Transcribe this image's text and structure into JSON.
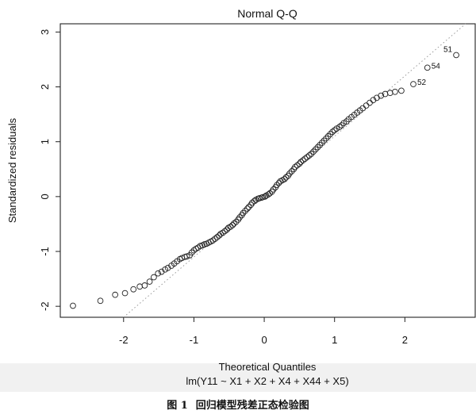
{
  "caption": {
    "label": "图 1",
    "text": "回归模型残差正态检验图"
  },
  "chart_data": {
    "type": "scatter",
    "title": "Normal Q-Q",
    "xlabel": "Theoretical Quantiles",
    "ylabel": "Standardized residuals",
    "sublabel": "lm(Y11 ~ X1 + X2 + X4 + X44 + X5)",
    "xlim": [
      -2.9,
      3.0
    ],
    "ylim": [
      -2.2,
      3.15
    ],
    "xticks": [
      -2,
      -1,
      0,
      1,
      2
    ],
    "xtick_labels": [
      "-2",
      "-1",
      "0",
      "1",
      "2"
    ],
    "yticks": [
      -2,
      -1,
      0,
      1,
      2,
      3
    ],
    "ytick_labels": [
      "-2",
      "-1",
      "0",
      "1",
      "2",
      "3"
    ],
    "grid": false,
    "reference_line": {
      "slope": 1.1,
      "intercept": 0.0,
      "style": "dotted",
      "color": "#999999"
    },
    "point_color": "#222222",
    "labeled_points": [
      {
        "label": "51",
        "x": 2.73,
        "y": 2.58
      },
      {
        "label": "54",
        "x": 2.32,
        "y": 2.35
      },
      {
        "label": "52",
        "x": 2.12,
        "y": 2.05
      }
    ],
    "x": [
      -2.72,
      -2.33,
      -2.12,
      -1.98,
      -1.86,
      -1.77,
      -1.7,
      -1.63,
      -1.57,
      -1.51,
      -1.46,
      -1.41,
      -1.37,
      -1.32,
      -1.28,
      -1.24,
      -1.2,
      -1.17,
      -1.13,
      -1.1,
      -1.06,
      -1.03,
      -1.0,
      -0.97,
      -0.94,
      -0.91,
      -0.88,
      -0.85,
      -0.82,
      -0.79,
      -0.76,
      -0.73,
      -0.7,
      -0.67,
      -0.64,
      -0.62,
      -0.59,
      -0.56,
      -0.53,
      -0.51,
      -0.48,
      -0.45,
      -0.43,
      -0.4,
      -0.37,
      -0.35,
      -0.32,
      -0.3,
      -0.27,
      -0.24,
      -0.22,
      -0.19,
      -0.17,
      -0.14,
      -0.12,
      -0.09,
      -0.07,
      -0.04,
      -0.02,
      0.01,
      0.03,
      0.06,
      0.08,
      0.11,
      0.13,
      0.16,
      0.18,
      0.21,
      0.23,
      0.26,
      0.29,
      0.31,
      0.34,
      0.36,
      0.39,
      0.42,
      0.44,
      0.47,
      0.5,
      0.52,
      0.55,
      0.58,
      0.61,
      0.64,
      0.67,
      0.7,
      0.73,
      0.76,
      0.79,
      0.82,
      0.85,
      0.88,
      0.91,
      0.94,
      0.97,
      1.0,
      1.03,
      1.07,
      1.1,
      1.13,
      1.17,
      1.2,
      1.24,
      1.28,
      1.32,
      1.36,
      1.4,
      1.45,
      1.5,
      1.55,
      1.6,
      1.66,
      1.72,
      1.79,
      1.86,
      1.95,
      2.12,
      2.32,
      2.73
    ],
    "y": [
      -1.99,
      -1.9,
      -1.79,
      -1.76,
      -1.69,
      -1.64,
      -1.62,
      -1.55,
      -1.47,
      -1.4,
      -1.37,
      -1.33,
      -1.3,
      -1.26,
      -1.22,
      -1.18,
      -1.14,
      -1.12,
      -1.1,
      -1.09,
      -1.07,
      -1.02,
      -0.98,
      -0.95,
      -0.93,
      -0.9,
      -0.89,
      -0.87,
      -0.86,
      -0.84,
      -0.82,
      -0.8,
      -0.77,
      -0.74,
      -0.71,
      -0.68,
      -0.66,
      -0.63,
      -0.6,
      -0.57,
      -0.55,
      -0.52,
      -0.49,
      -0.46,
      -0.42,
      -0.38,
      -0.34,
      -0.3,
      -0.26,
      -0.22,
      -0.19,
      -0.15,
      -0.11,
      -0.08,
      -0.06,
      -0.04,
      -0.03,
      -0.02,
      -0.01,
      0.0,
      0.02,
      0.04,
      0.06,
      0.09,
      0.13,
      0.17,
      0.21,
      0.25,
      0.28,
      0.3,
      0.32,
      0.35,
      0.38,
      0.42,
      0.46,
      0.5,
      0.54,
      0.57,
      0.6,
      0.63,
      0.66,
      0.69,
      0.72,
      0.75,
      0.78,
      0.82,
      0.86,
      0.9,
      0.94,
      0.98,
      1.02,
      1.06,
      1.1,
      1.14,
      1.18,
      1.21,
      1.24,
      1.27,
      1.3,
      1.34,
      1.37,
      1.41,
      1.45,
      1.49,
      1.53,
      1.57,
      1.61,
      1.66,
      1.71,
      1.76,
      1.8,
      1.84,
      1.87,
      1.89,
      1.91,
      1.93,
      2.05,
      2.35,
      2.58
    ]
  }
}
